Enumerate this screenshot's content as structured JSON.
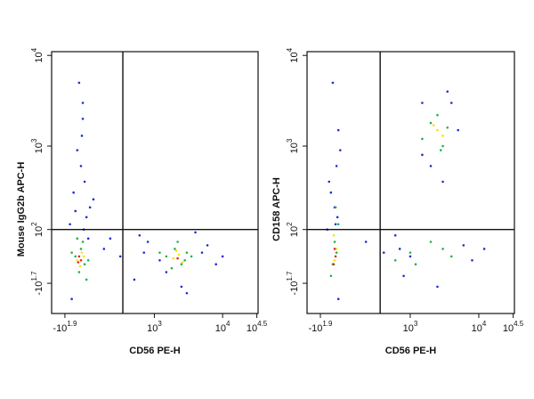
{
  "chart_data": [
    {
      "type": "scatter",
      "xlabel": "CD56 PE-H",
      "ylabel": "Mouse IgG2b APC-H",
      "xscale": "asinh",
      "x_cofactor": 160,
      "yscale": "asinh",
      "y_cofactor": 100,
      "xlim": [
        -170,
        33000
      ],
      "ylim": [
        -160,
        11000
      ],
      "xticks": [
        {
          "value": -79.43,
          "label": "-10",
          "sup": "1.9"
        },
        {
          "value": 1000,
          "label": "10",
          "sup": "3"
        },
        {
          "value": 10000,
          "label": "10",
          "sup": "4"
        },
        {
          "value": 31623,
          "label": "10",
          "sup": "4.5"
        }
      ],
      "yticks": [
        {
          "value": -50.12,
          "label": "-10",
          "sup": "1.7"
        },
        {
          "value": 100,
          "label": "10",
          "sup": "2"
        },
        {
          "value": 1000,
          "label": "10",
          "sup": "3"
        },
        {
          "value": 10000,
          "label": "10",
          "sup": "4"
        }
      ],
      "gates": {
        "x": 330,
        "y": 100
      },
      "series": [
        {
          "color": "#1a2fd6",
          "x": [
            -30,
            10,
            40,
            -10,
            60,
            20,
            -50,
            30,
            80,
            0,
            15,
            300,
            500,
            800,
            1200,
            3000,
            5000,
            8000,
            600,
            150,
            -40,
            25,
            50,
            4000,
            2500,
            1500,
            700,
            10000,
            6000,
            200,
            20,
            -20
          ],
          "y": [
            300,
            600,
            150,
            900,
            200,
            2000,
            120,
            400,
            250,
            5000,
            1300,
            20,
            -40,
            60,
            10,
            -80,
            30,
            0,
            80,
            40,
            -100,
            100,
            70,
            90,
            -60,
            -20,
            30,
            20,
            50,
            70,
            3000,
            180
          ]
        },
        {
          "color": "#22b24c",
          "x": [
            -20,
            10,
            30,
            -40,
            50,
            0,
            20,
            -10,
            1500,
            2000,
            2500,
            3000,
            1800,
            2200,
            2800,
            1200,
            40,
            3500
          ],
          "y": [
            20,
            40,
            0,
            30,
            10,
            -20,
            60,
            70,
            20,
            40,
            0,
            30,
            -10,
            60,
            10,
            30,
            -40,
            20
          ]
        },
        {
          "color": "#f2e600",
          "x": [
            -10,
            15,
            5,
            25,
            1900,
            2300,
            2600,
            2100
          ],
          "y": [
            10,
            30,
            -5,
            20,
            15,
            25,
            5,
            35
          ]
        },
        {
          "color": "#e8261c",
          "x": [
            0,
            10,
            -5,
            2200
          ],
          "y": [
            20,
            10,
            5,
            15
          ]
        }
      ]
    },
    {
      "type": "scatter",
      "xlabel": "CD56 PE-H",
      "ylabel": "CD158 APC-H",
      "xscale": "asinh",
      "x_cofactor": 160,
      "yscale": "asinh",
      "y_cofactor": 100,
      "xlim": [
        -170,
        33000
      ],
      "ylim": [
        -160,
        11000
      ],
      "xticks": [
        {
          "value": -79.43,
          "label": "-10",
          "sup": "1.9"
        },
        {
          "value": 1000,
          "label": "10",
          "sup": "3"
        },
        {
          "value": 10000,
          "label": "10",
          "sup": "4"
        },
        {
          "value": 31623,
          "label": "10",
          "sup": "4.5"
        }
      ],
      "yticks": [
        {
          "value": -50.12,
          "label": "-10",
          "sup": "1.7"
        },
        {
          "value": 100,
          "label": "10",
          "sup": "2"
        },
        {
          "value": 1000,
          "label": "10",
          "sup": "3"
        },
        {
          "value": 10000,
          "label": "10",
          "sup": "4"
        }
      ],
      "gates": {
        "x": 350,
        "y": 100
      },
      "series": [
        {
          "color": "#1a2fd6",
          "x": [
            -20,
            10,
            0,
            30,
            -30,
            20,
            5,
            -10,
            3000,
            1500,
            4000,
            2000,
            5000,
            1000,
            6000,
            800,
            600,
            12000,
            8000,
            2500,
            400,
            1500,
            3500,
            200,
            20,
            700,
            15,
            -40
          ],
          "y": [
            300,
            600,
            200,
            900,
            400,
            1500,
            120,
            5000,
            400,
            800,
            3000,
            600,
            1500,
            20,
            50,
            -30,
            80,
            40,
            10,
            -60,
            30,
            3000,
            4000,
            60,
            -100,
            40,
            150,
            100
          ]
        },
        {
          "color": "#22b24c",
          "x": [
            -10,
            10,
            0,
            20,
            -20,
            5,
            1500,
            2000,
            3000,
            3500,
            2500,
            2800,
            1000,
            2000,
            4000,
            600,
            1200,
            3000
          ],
          "y": [
            0,
            30,
            60,
            120,
            -30,
            200,
            1200,
            1800,
            1000,
            1600,
            2200,
            900,
            30,
            60,
            20,
            10,
            0,
            40
          ]
        },
        {
          "color": "#f2e600",
          "x": [
            0,
            10,
            -5,
            2500,
            3000,
            2200
          ],
          "y": [
            10,
            40,
            80,
            1500,
            1300,
            1700
          ]
        },
        {
          "color": "#e8261c",
          "x": [
            5,
            -5,
            0
          ],
          "y": [
            20,
            0,
            40
          ]
        }
      ]
    }
  ]
}
